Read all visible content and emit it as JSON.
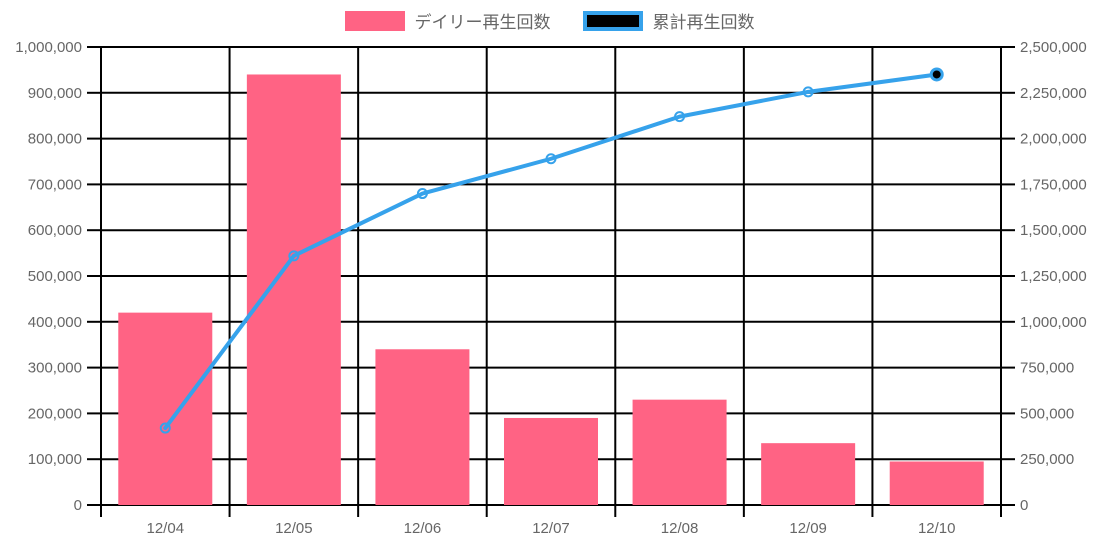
{
  "chart": {
    "background": "#ffffff",
    "text_color": "#666666",
    "grid_color": "#000000"
  },
  "legend": {
    "items": [
      {
        "label": "デイリー再生回数",
        "swatch_fill": "#FF6384",
        "swatch_border": "#FF6384"
      },
      {
        "label": "累計再生回数",
        "swatch_fill": "#000000",
        "swatch_border": "#36A2EB"
      }
    ]
  },
  "chart_data": {
    "type": "bar",
    "combo": "bar+line",
    "title": "",
    "categories": [
      "12/04",
      "12/05",
      "12/06",
      "12/07",
      "12/08",
      "12/09",
      "12/10"
    ],
    "series": [
      {
        "name": "デイリー再生回数",
        "type": "bar",
        "y_axis": "left",
        "color": "#FF6384",
        "values": [
          420000,
          940000,
          340000,
          190000,
          230000,
          135000,
          95000
        ]
      },
      {
        "name": "累計再生回数",
        "type": "line",
        "y_axis": "right",
        "color": "#36A2EB",
        "point_style": "hollow-circle",
        "last_point_fill": "#000000",
        "values": [
          420000,
          1360000,
          1700000,
          1890000,
          2120000,
          2255000,
          2350000
        ]
      }
    ],
    "left_axis": {
      "min": 0,
      "max": 1000000,
      "step": 100000,
      "tick_labels": [
        "1,000,000",
        "900,000",
        "800,000",
        "700,000",
        "600,000",
        "500,000",
        "400,000",
        "300,000",
        "200,000",
        "100,000",
        "0"
      ]
    },
    "right_axis": {
      "min": 0,
      "max": 2500000,
      "step": 250000,
      "tick_labels": [
        "2,500,000",
        "2,250,000",
        "2,000,000",
        "1,750,000",
        "1,500,000",
        "1,250,000",
        "1,000,000",
        "750,000",
        "500,000",
        "250,000",
        "0"
      ]
    },
    "grid": true,
    "legend_position": "top"
  }
}
